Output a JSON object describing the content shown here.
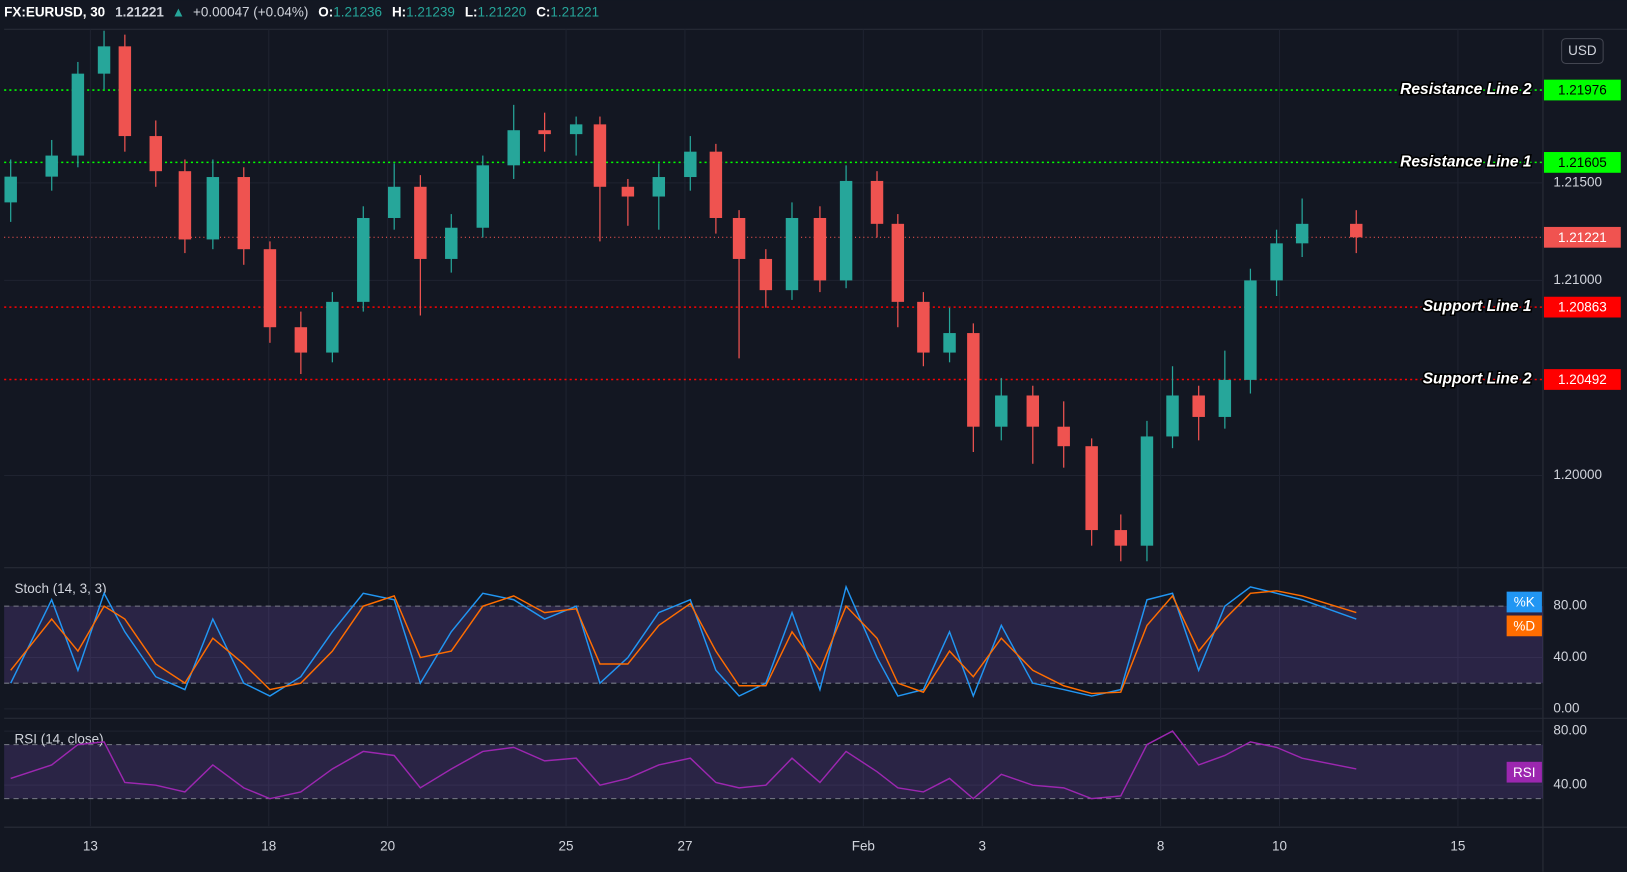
{
  "header": {
    "symbol": "FX:EURUSD, 30",
    "arrow": "▲",
    "change": "+0.00047 (+0.04%)",
    "ohlc": [
      {
        "label": "O:",
        "value": "1.21236"
      },
      {
        "label": "H:",
        "value": "1.21239"
      },
      {
        "label": "L:",
        "value": "1.21220"
      },
      {
        "label": "C:",
        "value": "1.21221"
      }
    ]
  },
  "chart_data": [
    {
      "type": "candlestick",
      "currency": "USD",
      "up_color": "#26a69a",
      "down_color": "#ef5350",
      "xlim": [
        -1.45,
        24.43
      ],
      "ylim": [
        1.19532,
        1.22277
      ],
      "yticks": [
        {
          "value": 1.2,
          "label": "1.20000"
        },
        {
          "value": 1.21,
          "label": "1.21000"
        },
        {
          "value": 1.215,
          "label": "1.21500"
        }
      ],
      "last_price": 1.21221,
      "last_color": "#f05350",
      "levels": [
        {
          "name": "Resistance Line 2",
          "value": 1.21976,
          "color": "#00ff00"
        },
        {
          "name": "Resistance Line 1",
          "value": 1.21605,
          "color": "#00ff00"
        },
        {
          "name": "Support Line 1",
          "value": 1.20863,
          "color": "#ff0000"
        },
        {
          "name": "Support Line 2",
          "value": 1.20492,
          "color": "#ff0000"
        }
      ],
      "x": [
        -1.34,
        -0.65,
        -0.21,
        0.23,
        0.58,
        1.1,
        1.59,
        2.06,
        2.58,
        3.02,
        3.54,
        4.07,
        4.59,
        5.11,
        5.55,
        6.07,
        6.6,
        7.12,
        7.64,
        8.17,
        8.57,
        9.04,
        9.56,
        10.09,
        10.52,
        10.91,
        11.36,
        11.8,
        12.27,
        12.71,
        13.23,
        13.58,
        14.01,
        14.45,
        14.85,
        15.32,
        15.85,
        16.37,
        16.84,
        17.33,
        17.77,
        18.2,
        18.64,
        19.08,
        19.51,
        19.95,
        20.38,
        21.29
      ],
      "open": [
        1.214,
        1.21532,
        1.2164,
        1.2206,
        1.222,
        1.2174,
        1.2156,
        1.2121,
        1.2153,
        1.2116,
        1.2076,
        1.2063,
        1.2089,
        1.2132,
        1.2148,
        1.2111,
        1.2127,
        1.2159,
        1.2177,
        1.2175,
        1.218,
        1.2148,
        1.2143,
        1.2153,
        1.2166,
        1.2132,
        1.2111,
        1.2095,
        1.2132,
        1.21,
        1.2151,
        1.2129,
        1.2089,
        1.2063,
        1.2073,
        1.2025,
        1.2041,
        1.2025,
        1.2015,
        1.1972,
        1.1964,
        1.202,
        1.2041,
        1.203,
        1.2049,
        1.21,
        1.2119,
        1.2129
      ],
      "high": [
        1.2162,
        1.2172,
        1.2212,
        1.2228,
        1.2226,
        1.2182,
        1.2162,
        1.2162,
        1.2158,
        1.212,
        1.2084,
        1.2094,
        1.2138,
        1.216,
        1.2154,
        1.2134,
        1.2164,
        1.219,
        1.2186,
        1.2184,
        1.2184,
        1.2152,
        1.216,
        1.2174,
        1.217,
        1.2136,
        1.2116,
        1.214,
        1.2138,
        1.2159,
        1.2156,
        1.2134,
        1.2094,
        1.2086,
        1.2078,
        1.205,
        1.2046,
        1.2038,
        1.2019,
        1.198,
        1.2028,
        1.2056,
        1.2046,
        1.2064,
        1.2106,
        1.2126,
        1.2142,
        1.2136
      ],
      "low": [
        1.213,
        1.2146,
        1.2158,
        1.2198,
        1.2166,
        1.2148,
        1.2114,
        1.2116,
        1.2108,
        1.2068,
        1.2052,
        1.2058,
        1.2084,
        1.2126,
        1.2082,
        1.2104,
        1.2122,
        1.2152,
        1.2166,
        1.2164,
        1.212,
        1.2128,
        1.2126,
        1.2146,
        1.2124,
        1.206,
        1.2086,
        1.209,
        1.2094,
        1.2096,
        1.2122,
        1.2076,
        1.2056,
        1.2058,
        1.2012,
        1.2018,
        1.2006,
        1.2004,
        1.1964,
        1.1956,
        1.1956,
        1.2014,
        1.2018,
        1.2024,
        1.2042,
        1.2092,
        1.2112,
        1.2114
      ],
      "close": [
        1.21532,
        1.2164,
        1.2206,
        1.222,
        1.2174,
        1.2156,
        1.2121,
        1.2153,
        1.2116,
        1.2076,
        1.2063,
        1.2089,
        1.2132,
        1.2148,
        1.2111,
        1.2127,
        1.2159,
        1.2177,
        1.2175,
        1.218,
        1.2148,
        1.2143,
        1.2153,
        1.2166,
        1.2132,
        1.2111,
        1.2095,
        1.2132,
        1.21,
        1.2151,
        1.2129,
        1.2089,
        1.2063,
        1.2073,
        1.2025,
        1.2041,
        1.2025,
        1.2015,
        1.1972,
        1.1964,
        1.202,
        1.2041,
        1.203,
        1.2049,
        1.21,
        1.2119,
        1.2129,
        1.21221
      ]
    },
    {
      "type": "line",
      "title": "Stoch (14, 3, 3)",
      "xlim": [
        -1.45,
        24.43
      ],
      "ylim": [
        -5.7,
        109.1
      ],
      "yticks": [
        {
          "value": 0,
          "label": "0.00"
        },
        {
          "value": 40,
          "label": "40.00"
        },
        {
          "value": 80,
          "label": "80.00"
        }
      ],
      "bands": [
        20,
        80
      ],
      "band_color": "#7e57c2",
      "x": [
        -1.34,
        -0.65,
        -0.21,
        0.23,
        0.58,
        1.1,
        1.59,
        2.06,
        2.58,
        3.02,
        3.54,
        4.07,
        4.59,
        5.11,
        5.55,
        6.07,
        6.6,
        7.12,
        7.64,
        8.17,
        8.57,
        9.04,
        9.56,
        10.09,
        10.52,
        10.91,
        11.36,
        11.8,
        12.27,
        12.71,
        13.23,
        13.58,
        14.01,
        14.45,
        14.85,
        15.32,
        15.85,
        16.37,
        16.84,
        17.33,
        17.77,
        18.2,
        18.64,
        19.08,
        19.51,
        19.95,
        20.38,
        21.29
      ],
      "series": [
        {
          "name": "%K",
          "color": "#2196f3",
          "values": [
            20,
            85,
            30,
            90,
            60,
            25,
            15,
            70,
            20,
            10,
            25,
            60,
            90,
            85,
            20,
            60,
            90,
            85,
            70,
            80,
            20,
            40,
            75,
            85,
            30,
            10,
            20,
            75,
            15,
            95,
            40,
            10,
            15,
            60,
            10,
            65,
            20,
            15,
            10,
            15,
            85,
            90,
            30,
            80,
            95,
            90,
            85,
            70
          ]
        },
        {
          "name": "%D",
          "color": "#ff6d00",
          "values": [
            30,
            70,
            45,
            80,
            70,
            35,
            20,
            55,
            35,
            15,
            20,
            45,
            80,
            88,
            40,
            45,
            80,
            88,
            75,
            78,
            35,
            35,
            65,
            82,
            45,
            18,
            18,
            60,
            30,
            80,
            55,
            20,
            13,
            45,
            25,
            55,
            30,
            18,
            12,
            13,
            65,
            88,
            45,
            70,
            90,
            92,
            88,
            75
          ]
        }
      ]
    },
    {
      "type": "line",
      "title": "RSI (14, close)",
      "xlim": [
        -1.45,
        24.43
      ],
      "ylim": [
        9.6,
        88.8
      ],
      "yticks": [
        {
          "value": 40,
          "label": "40.00"
        },
        {
          "value": 80,
          "label": "80.00"
        }
      ],
      "bands": [
        30,
        70
      ],
      "band_color": "#7e57c2",
      "xticks": [
        {
          "value": 0,
          "label": "13"
        },
        {
          "value": 3,
          "label": "18"
        },
        {
          "value": 5,
          "label": "20"
        },
        {
          "value": 8,
          "label": "25"
        },
        {
          "value": 10,
          "label": "27"
        },
        {
          "value": 13,
          "label": "Feb"
        },
        {
          "value": 15,
          "label": "3"
        },
        {
          "value": 18,
          "label": "8"
        },
        {
          "value": 20,
          "label": "10"
        },
        {
          "value": 23,
          "label": "15"
        }
      ],
      "x": [
        -1.34,
        -0.65,
        -0.21,
        0.23,
        0.58,
        1.1,
        1.59,
        2.06,
        2.58,
        3.02,
        3.54,
        4.07,
        4.59,
        5.11,
        5.55,
        6.07,
        6.6,
        7.12,
        7.64,
        8.17,
        8.57,
        9.04,
        9.56,
        10.09,
        10.52,
        10.91,
        11.36,
        11.8,
        12.27,
        12.71,
        13.23,
        13.58,
        14.01,
        14.45,
        14.85,
        15.32,
        15.85,
        16.37,
        16.84,
        17.33,
        17.77,
        18.2,
        18.64,
        19.08,
        19.51,
        19.95,
        20.38,
        21.29
      ],
      "series": [
        {
          "name": "RSI",
          "color": "#9c27b0",
          "values": [
            45,
            55,
            70,
            72,
            42,
            40,
            35,
            55,
            38,
            30,
            35,
            52,
            65,
            62,
            38,
            52,
            65,
            68,
            58,
            60,
            40,
            45,
            55,
            60,
            42,
            38,
            40,
            60,
            42,
            65,
            50,
            38,
            35,
            45,
            30,
            48,
            40,
            38,
            30,
            32,
            70,
            80,
            55,
            62,
            72,
            68,
            60,
            52
          ]
        }
      ]
    }
  ]
}
